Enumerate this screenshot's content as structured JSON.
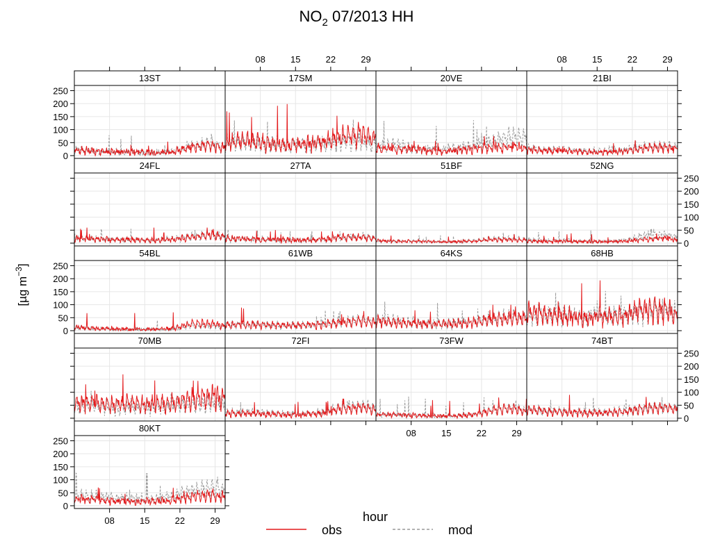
{
  "chart_data": {
    "type": "line",
    "title": "NO",
    "title_subscript": "2",
    "title_rest": "07/2013 HH",
    "xlabel": "hour",
    "ylabel_text": "[µg m",
    "ylabel_superscript": "−3",
    "ylabel_close": "]",
    "x_domain": [
      "2013-07-01",
      "2013-07-31"
    ],
    "ylim": [
      0,
      250
    ],
    "yticks": [
      0,
      50,
      100,
      150,
      200,
      250
    ],
    "x_ticks": [
      {
        "label": "08",
        "day": 8
      },
      {
        "label": "15",
        "day": 15
      },
      {
        "label": "22",
        "day": 22
      },
      {
        "label": "29",
        "day": 29
      }
    ],
    "legend": {
      "placement": "bottom",
      "entries": [
        {
          "name": "obs",
          "color": "#e41a1c",
          "style": "solid"
        },
        {
          "name": "mod",
          "color": "#999999",
          "style": "dashed"
        }
      ]
    },
    "grid": true,
    "layout": {
      "columns": 4,
      "rows": 5
    },
    "panels": [
      {
        "name": "13ST",
        "obs_profile": [
          25,
          20,
          15,
          15,
          12,
          15,
          35,
          45,
          30
        ],
        "mod_profile": [
          25,
          18,
          15,
          15,
          12,
          15,
          40,
          50,
          30
        ],
        "amp": 18,
        "peak": 55,
        "mod_peak": 85
      },
      {
        "name": "17SM",
        "obs_profile": [
          55,
          60,
          55,
          45,
          45,
          55,
          80,
          90,
          70
        ],
        "mod_profile": [
          55,
          55,
          50,
          45,
          45,
          50,
          60,
          60,
          55
        ],
        "amp": 35,
        "peak": 248,
        "mod_peak": 140
      },
      {
        "name": "20VE",
        "obs_profile": [
          30,
          28,
          25,
          20,
          20,
          28,
          35,
          35,
          30
        ],
        "mod_profile": [
          40,
          45,
          30,
          25,
          30,
          40,
          60,
          80,
          70
        ],
        "amp": 20,
        "peak": 75,
        "mod_peak": 150
      },
      {
        "name": "21BI",
        "obs_profile": [
          25,
          20,
          20,
          15,
          15,
          18,
          30,
          35,
          25
        ],
        "mod_profile": [
          30,
          25,
          25,
          20,
          20,
          25,
          35,
          40,
          35
        ],
        "amp": 15,
        "peak": 70,
        "mod_peak": 65
      },
      {
        "name": "24FL",
        "obs_profile": [
          20,
          18,
          15,
          15,
          12,
          15,
          25,
          35,
          20
        ],
        "mod_profile": [
          20,
          18,
          15,
          15,
          12,
          18,
          28,
          35,
          22
        ],
        "amp": 14,
        "peak": 60,
        "mod_peak": 65
      },
      {
        "name": "27TA",
        "obs_profile": [
          20,
          18,
          15,
          15,
          12,
          15,
          25,
          25,
          18
        ],
        "mod_profile": [
          18,
          15,
          15,
          12,
          12,
          15,
          22,
          28,
          20
        ],
        "amp": 14,
        "peak": 60,
        "mod_peak": 55
      },
      {
        "name": "51BF",
        "obs_profile": [
          10,
          8,
          8,
          6,
          6,
          8,
          15,
          15,
          10
        ],
        "mod_profile": [
          10,
          8,
          8,
          6,
          6,
          10,
          18,
          20,
          12
        ],
        "amp": 8,
        "peak": 35,
        "mod_peak": 40
      },
      {
        "name": "52NG",
        "obs_profile": [
          10,
          8,
          8,
          6,
          6,
          8,
          15,
          20,
          10
        ],
        "mod_profile": [
          15,
          12,
          10,
          8,
          8,
          12,
          30,
          35,
          20
        ],
        "amp": 10,
        "peak": 40,
        "mod_peak": 65
      },
      {
        "name": "54BL",
        "obs_profile": [
          15,
          10,
          8,
          6,
          6,
          8,
          30,
          30,
          15
        ],
        "mod_profile": [
          12,
          8,
          6,
          5,
          5,
          6,
          20,
          20,
          10
        ],
        "amp": 12,
        "peak": 75,
        "mod_peak": 50
      },
      {
        "name": "61WB",
        "obs_profile": [
          25,
          25,
          25,
          22,
          22,
          25,
          35,
          40,
          30
        ],
        "mod_profile": [
          25,
          25,
          25,
          22,
          22,
          25,
          35,
          45,
          32
        ],
        "amp": 15,
        "peak": 95,
        "mod_peak": 80
      },
      {
        "name": "64KS",
        "obs_profile": [
          40,
          35,
          30,
          28,
          28,
          35,
          45,
          55,
          45
        ],
        "mod_profile": [
          45,
          40,
          35,
          30,
          30,
          38,
          50,
          60,
          50
        ],
        "amp": 20,
        "peak": 110,
        "mod_peak": 120
      },
      {
        "name": "68HB",
        "obs_profile": [
          80,
          70,
          60,
          55,
          55,
          65,
          90,
          85,
          60
        ],
        "mod_profile": [
          70,
          70,
          65,
          60,
          60,
          65,
          80,
          85,
          70
        ],
        "amp": 40,
        "peak": 205,
        "mod_peak": 170
      },
      {
        "name": "70MB",
        "obs_profile": [
          65,
          65,
          60,
          60,
          60,
          65,
          80,
          90,
          75
        ],
        "mod_profile": [
          50,
          50,
          45,
          45,
          45,
          50,
          60,
          65,
          55
        ],
        "amp": 30,
        "peak": 185,
        "mod_peak": 120
      },
      {
        "name": "72FI",
        "obs_profile": [
          20,
          20,
          18,
          15,
          15,
          20,
          40,
          45,
          30
        ],
        "mod_profile": [
          25,
          25,
          22,
          18,
          20,
          25,
          45,
          55,
          35
        ],
        "amp": 15,
        "peak": 75,
        "mod_peak": 85
      },
      {
        "name": "73FW",
        "obs_profile": [
          15,
          15,
          12,
          10,
          10,
          15,
          35,
          40,
          20
        ],
        "mod_profile": [
          15,
          15,
          12,
          10,
          10,
          15,
          35,
          45,
          25
        ],
        "amp": 12,
        "peak": 80,
        "mod_peak": 85
      },
      {
        "name": "74BT",
        "obs_profile": [
          35,
          30,
          25,
          22,
          22,
          28,
          40,
          45,
          35
        ],
        "mod_profile": [
          35,
          32,
          28,
          25,
          25,
          30,
          40,
          45,
          40
        ],
        "amp": 15,
        "peak": 95,
        "mod_peak": 90
      },
      {
        "name": "80KT",
        "obs_profile": [
          30,
          25,
          20,
          18,
          18,
          22,
          40,
          45,
          35
        ],
        "mod_profile": [
          45,
          40,
          35,
          30,
          30,
          40,
          60,
          75,
          60
        ],
        "amp": 18,
        "peak": 75,
        "mod_peak": 125
      }
    ]
  }
}
